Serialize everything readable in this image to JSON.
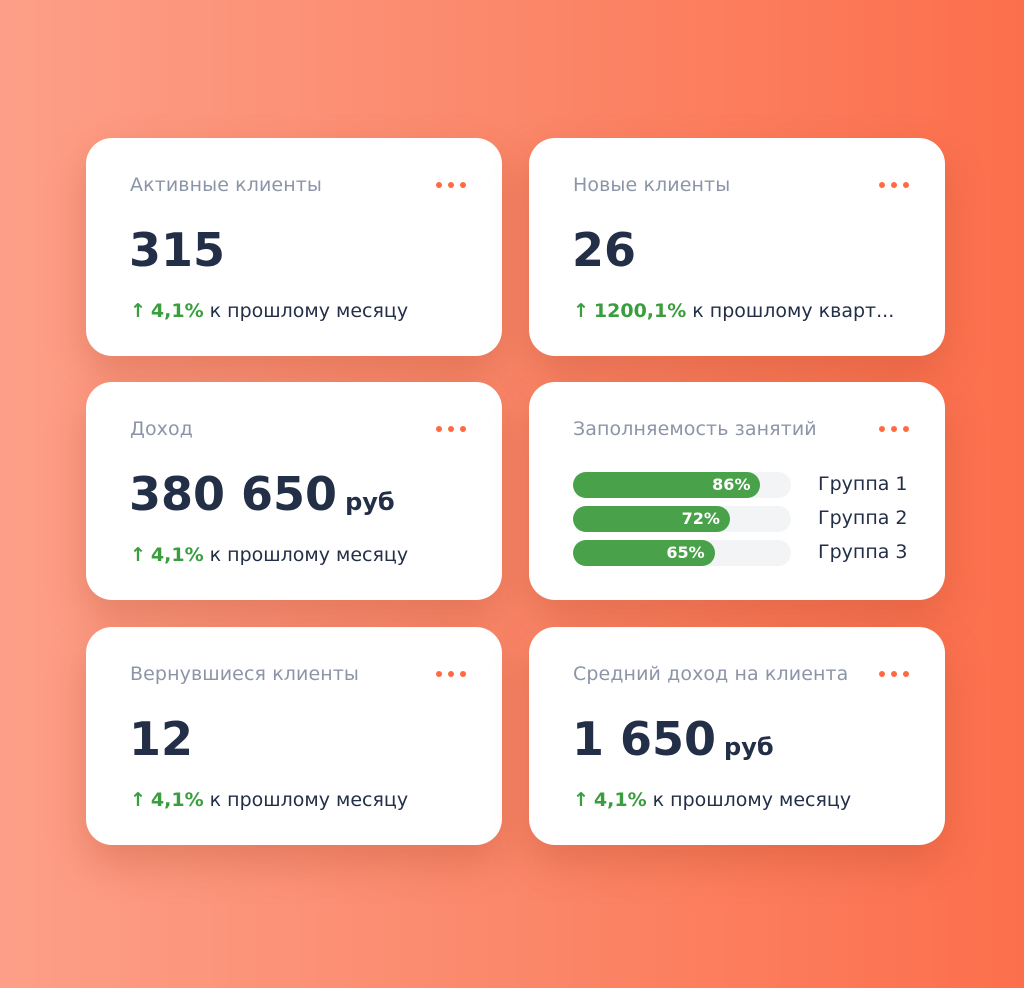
{
  "colors": {
    "accent": "#ff6a45",
    "positive": "#3a9d3e",
    "bar": "#49a24a",
    "text_dark": "#232e47",
    "text_muted": "#8c95a8"
  },
  "icons": {
    "more": "more-horizontal-icon",
    "trend_up": "arrow-up-icon"
  },
  "cards": {
    "active_clients": {
      "title": "Активные клиенты",
      "value": "315",
      "trend_arrow": "↑",
      "trend_value": "4,1%",
      "trend_text": "к прошлому месяцу"
    },
    "new_clients": {
      "title": "Новые клиенты",
      "value": "26",
      "trend_arrow": "↑",
      "trend_value": "1200,1%",
      "trend_text": "к прошлому кварт..."
    },
    "income": {
      "title": "Доход",
      "value": "380 650",
      "unit": "руб",
      "trend_arrow": "↑",
      "trend_value": "4,1%",
      "trend_text": "к прошлому месяцу"
    },
    "occupancy": {
      "title": "Заполняемость занятий",
      "groups": [
        {
          "label": "Группа 1",
          "percent_text": "86%",
          "percent": 86
        },
        {
          "label": "Группа 2",
          "percent_text": "72%",
          "percent": 72
        },
        {
          "label": "Группа 3",
          "percent_text": "65%",
          "percent": 65
        }
      ]
    },
    "returned_clients": {
      "title": "Вернувшиеся клиенты",
      "value": "12",
      "trend_arrow": "↑",
      "trend_value": "4,1%",
      "trend_text": "к прошлому месяцу"
    },
    "avg_income": {
      "title": "Средний доход на клиента",
      "value": "1 650",
      "unit": "руб",
      "trend_arrow": "↑",
      "trend_value": "4,1%",
      "trend_text": "к прошлому месяцу"
    }
  }
}
